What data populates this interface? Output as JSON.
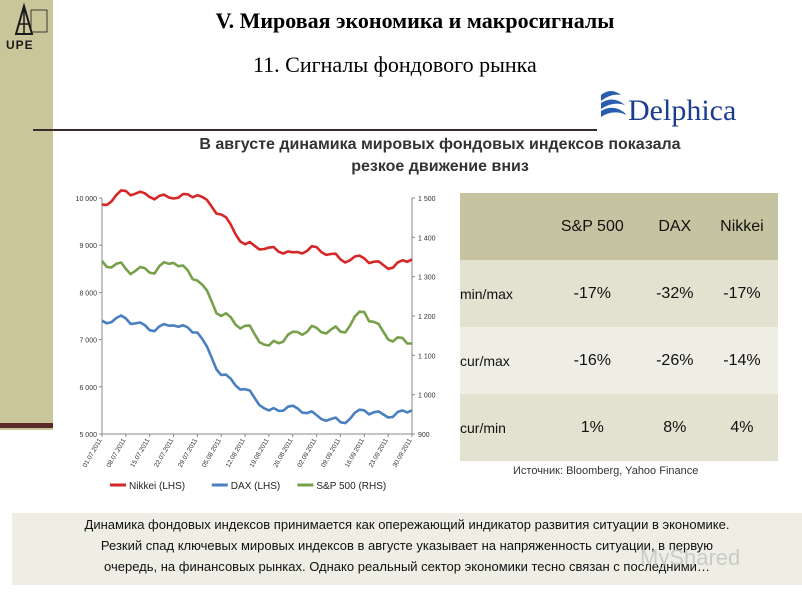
{
  "header": {
    "title": "V. Мировая экономика и макросигналы",
    "subtitle": "11. Сигналы фондового рынка",
    "logo_text": "UPE",
    "brand_text": "Delphica"
  },
  "headline": {
    "line1": "В августе динамика мировых фондовых индексов показала",
    "line2": "резкое движение вниз"
  },
  "chart_data": {
    "type": "line",
    "x": [
      "01.07.2011",
      "08.07.2011",
      "15.07.2011",
      "22.07.2011",
      "29.07.2011",
      "05.08.2011",
      "12.08.2011",
      "19.08.2011",
      "26.08.2011",
      "02.09.2011",
      "09.09.2011",
      "16.09.2011",
      "23.09.2011",
      "30.09.2011"
    ],
    "y_left": {
      "ticks": [
        "5 000",
        "6 000",
        "7 000",
        "8 000",
        "9 000",
        "10 000"
      ],
      "ylim": [
        5000,
        10000
      ]
    },
    "y_right": {
      "ticks": [
        "900",
        "1 000",
        "1 100",
        "1 200",
        "1 300",
        "1 400",
        "1 500"
      ],
      "ylim": [
        900,
        1500
      ]
    },
    "series": [
      {
        "name": "Nikkei (LHS)",
        "axis": "left",
        "color": "#d62728",
        "values": [
          9860,
          10150,
          10020,
          9990,
          10060,
          9650,
          9020,
          8950,
          8850,
          8960,
          8700,
          8720,
          8500,
          8700
        ]
      },
      {
        "name": "DAX (LHS)",
        "axis": "left",
        "color": "#4a7fc1",
        "values": [
          7400,
          7450,
          7200,
          7300,
          7150,
          6250,
          5950,
          5500,
          5600,
          5400,
          5250,
          5500,
          5350,
          5500
        ]
      },
      {
        "name": "S&P 500 (RHS)",
        "axis": "right",
        "color": "#77a04a",
        "values": [
          1340,
          1320,
          1310,
          1335,
          1290,
          1200,
          1175,
          1125,
          1160,
          1170,
          1160,
          1210,
          1140,
          1130
        ]
      }
    ],
    "legend_position": "bottom",
    "grid": false
  },
  "table": {
    "headers": [
      "",
      "S&P 500",
      "DAX",
      "Nikkei"
    ],
    "rows": [
      {
        "label": "min/max",
        "values": [
          "-17%",
          "-32%",
          "-17%"
        ]
      },
      {
        "label": "cur/max",
        "values": [
          "-16%",
          "-26%",
          "-14%"
        ]
      },
      {
        "label": "cur/min",
        "values": [
          "1%",
          "8%",
          "4%"
        ]
      }
    ]
  },
  "source": "Источник: Bloomberg, Yahoo Finance",
  "footer": {
    "line1": "Динамика фондовых индексов принимается как опережающий индикатор развития ситуации в экономике.",
    "line2": "Резкий спад ключевых мировых индексов в августе указывает на напряженность ситуации, в первую",
    "line3": "очередь, на финансовых рынках. Однако реальный сектор экономики тесно связан с последними…"
  },
  "watermark": "MyShared"
}
